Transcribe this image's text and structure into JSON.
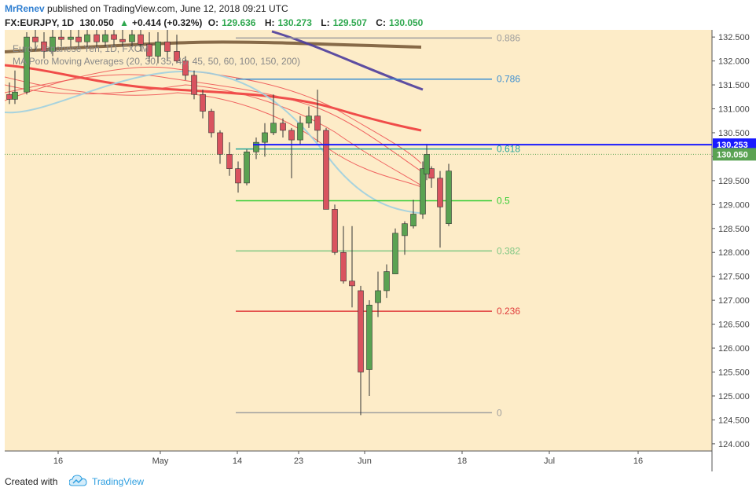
{
  "header": {
    "author": "MrRenev",
    "published": "published on TradingView.com, June 12, 2018 09:21 UTC",
    "symbol": "FX:EURJPY, 1D",
    "last": "130.050",
    "change_arrow": "▲",
    "change": "+0.414 (+0.32%)",
    "o_label": "O:",
    "o_value": "129.636",
    "h_label": "H:",
    "h_value": "130.273",
    "l_label": "L:",
    "l_value": "129.507",
    "c_label": "C:",
    "c_value": "130.050"
  },
  "footer": {
    "created": "Created with",
    "brand": "TradingView",
    "logo_icon": "tradingview-cloud-icon"
  },
  "colors": {
    "background": "#fdecc8",
    "up": "#5aa252",
    "down": "#d9535f",
    "blue_line": "#1a1aff",
    "price_tag": "#5aa252"
  },
  "chart_data": {
    "type": "candlestick",
    "title": "Euro / Japanese Yen, 1D, FXCM",
    "subtitle": "MA Poro Moving Averages (20, 30, 35, 40, 45, 50, 60, 100, 150, 200)",
    "ylim": [
      123.85,
      132.65
    ],
    "y_ticks": [
      "132.500",
      "132.000",
      "131.500",
      "131.000",
      "130.500",
      "130.000",
      "129.500",
      "129.000",
      "128.500",
      "128.000",
      "127.500",
      "127.000",
      "126.500",
      "126.000",
      "125.500",
      "125.000",
      "124.500",
      "124.000"
    ],
    "x_ticks": [
      "16",
      "May",
      "14",
      "23",
      "Jun",
      "18",
      "Jul",
      "16"
    ],
    "candles": [
      {
        "o": 131.3,
        "h": 131.55,
        "l": 131.1,
        "c": 131.2
      },
      {
        "o": 131.2,
        "h": 131.8,
        "l": 131.1,
        "c": 131.35
      },
      {
        "o": 131.35,
        "h": 132.6,
        "l": 131.3,
        "c": 132.5
      },
      {
        "o": 132.5,
        "h": 132.7,
        "l": 132.2,
        "c": 132.4
      },
      {
        "o": 132.4,
        "h": 132.6,
        "l": 132.05,
        "c": 132.2
      },
      {
        "o": 132.2,
        "h": 132.7,
        "l": 132.1,
        "c": 132.5
      },
      {
        "o": 132.5,
        "h": 132.7,
        "l": 132.3,
        "c": 132.45
      },
      {
        "o": 132.45,
        "h": 132.7,
        "l": 132.3,
        "c": 132.5
      },
      {
        "o": 132.5,
        "h": 132.7,
        "l": 132.3,
        "c": 132.4
      },
      {
        "o": 132.4,
        "h": 132.7,
        "l": 132.3,
        "c": 132.55
      },
      {
        "o": 132.55,
        "h": 132.7,
        "l": 132.3,
        "c": 132.4
      },
      {
        "o": 132.4,
        "h": 132.65,
        "l": 132.3,
        "c": 132.55
      },
      {
        "o": 132.55,
        "h": 132.7,
        "l": 132.3,
        "c": 132.45
      },
      {
        "o": 132.45,
        "h": 132.7,
        "l": 132.3,
        "c": 132.4
      },
      {
        "o": 132.4,
        "h": 132.7,
        "l": 132.3,
        "c": 132.55
      },
      {
        "o": 132.55,
        "h": 132.7,
        "l": 132.2,
        "c": 132.35
      },
      {
        "o": 132.35,
        "h": 132.6,
        "l": 131.95,
        "c": 132.1
      },
      {
        "o": 132.1,
        "h": 132.6,
        "l": 131.95,
        "c": 132.4
      },
      {
        "o": 132.4,
        "h": 132.65,
        "l": 132.0,
        "c": 132.2
      },
      {
        "o": 132.2,
        "h": 132.55,
        "l": 131.95,
        "c": 132.0
      },
      {
        "o": 132.0,
        "h": 132.1,
        "l": 131.6,
        "c": 131.7
      },
      {
        "o": 131.7,
        "h": 131.8,
        "l": 131.2,
        "c": 131.3
      },
      {
        "o": 131.3,
        "h": 131.4,
        "l": 130.8,
        "c": 130.95
      },
      {
        "o": 130.95,
        "h": 131.0,
        "l": 130.4,
        "c": 130.5
      },
      {
        "o": 130.5,
        "h": 130.55,
        "l": 129.85,
        "c": 130.05
      },
      {
        "o": 130.05,
        "h": 130.3,
        "l": 129.6,
        "c": 129.75
      },
      {
        "o": 129.75,
        "h": 129.9,
        "l": 129.25,
        "c": 129.45
      },
      {
        "o": 129.45,
        "h": 130.15,
        "l": 129.4,
        "c": 130.1
      },
      {
        "o": 130.1,
        "h": 130.4,
        "l": 129.95,
        "c": 130.3
      },
      {
        "o": 130.3,
        "h": 130.7,
        "l": 130.0,
        "c": 130.5
      },
      {
        "o": 130.5,
        "h": 131.3,
        "l": 130.45,
        "c": 130.7
      },
      {
        "o": 130.7,
        "h": 130.8,
        "l": 130.4,
        "c": 130.55
      },
      {
        "o": 130.55,
        "h": 130.6,
        "l": 129.55,
        "c": 130.35
      },
      {
        "o": 130.35,
        "h": 130.85,
        "l": 130.25,
        "c": 130.7
      },
      {
        "o": 130.7,
        "h": 131.05,
        "l": 130.6,
        "c": 130.85
      },
      {
        "o": 130.85,
        "h": 131.4,
        "l": 130.3,
        "c": 130.55
      },
      {
        "o": 130.55,
        "h": 130.6,
        "l": 128.9,
        "c": 128.9
      },
      {
        "o": 128.9,
        "h": 129.0,
        "l": 127.95,
        "c": 128.0
      },
      {
        "o": 128.0,
        "h": 128.55,
        "l": 127.35,
        "c": 127.4
      },
      {
        "o": 127.4,
        "h": 128.55,
        "l": 126.85,
        "c": 127.3
      },
      {
        "o": 127.2,
        "h": 127.3,
        "l": 124.6,
        "c": 125.5
      },
      {
        "o": 125.55,
        "h": 127.0,
        "l": 125.0,
        "c": 126.9
      },
      {
        "o": 126.95,
        "h": 127.6,
        "l": 126.65,
        "c": 127.2
      },
      {
        "o": 127.2,
        "h": 127.75,
        "l": 127.05,
        "c": 127.6
      },
      {
        "o": 127.55,
        "h": 128.5,
        "l": 127.55,
        "c": 128.4
      },
      {
        "o": 128.35,
        "h": 128.65,
        "l": 127.95,
        "c": 128.6
      },
      {
        "o": 128.55,
        "h": 129.1,
        "l": 128.5,
        "c": 128.8
      },
      {
        "o": 128.8,
        "h": 129.9,
        "l": 128.7,
        "c": 129.75
      },
      {
        "o": 129.75,
        "h": 129.8,
        "l": 129.35,
        "c": 129.55
      },
      {
        "o": 129.55,
        "h": 129.7,
        "l": 128.1,
        "c": 128.95
      },
      {
        "o": 128.6,
        "h": 129.85,
        "l": 128.55,
        "c": 129.7
      },
      {
        "o": 129.64,
        "h": 130.27,
        "l": 129.51,
        "c": 130.05
      }
    ],
    "candle_x": [
      6,
      13,
      28,
      39,
      50,
      61,
      72,
      84,
      94,
      105,
      117,
      128,
      139,
      150,
      162,
      173,
      184,
      195,
      207,
      219,
      230,
      241,
      252,
      263,
      274,
      286,
      297,
      308,
      320,
      331,
      342,
      354,
      365,
      376,
      387,
      398,
      409,
      420,
      431,
      442,
      453,
      464,
      475,
      486,
      497,
      509,
      520,
      532,
      543,
      554,
      565,
      537
    ],
    "fib_levels": [
      {
        "label": "0.886",
        "price": 132.48,
        "color": "#9e9e9e"
      },
      {
        "label": "0.786",
        "price": 131.62,
        "color": "#3d8fd1"
      },
      {
        "label": "0.618",
        "price": 130.16,
        "color": "#26a69a"
      },
      {
        "label": "0.5",
        "price": 129.08,
        "color": "#33cc33"
      },
      {
        "label": "0.382",
        "price": 128.03,
        "color": "#81c784"
      },
      {
        "label": "0.236",
        "price": 126.77,
        "color": "#e03b3b"
      },
      {
        "label": "0",
        "price": 124.65,
        "color": "#9e9e9e"
      }
    ],
    "price_tags": [
      {
        "label": "130.253",
        "price": 130.25,
        "color": "#1a1aff"
      },
      {
        "label": "130.050",
        "price": 130.05,
        "color": "#5aa252"
      }
    ]
  }
}
